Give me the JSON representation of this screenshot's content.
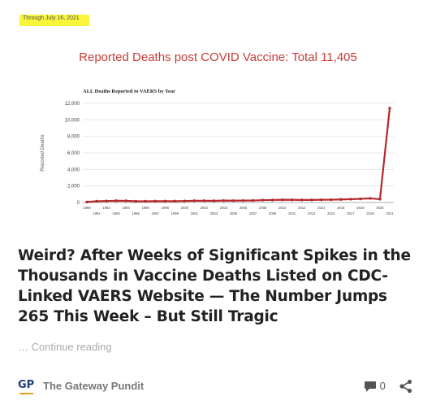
{
  "highlight_note": "Through July 16, 2021",
  "chart_heading": "Reported Deaths post COVID Vaccine: Total 11,405",
  "chart_data": {
    "type": "line",
    "title": "ALL Deaths Reported to VAERS by Year",
    "ylabel": "Reported Deaths",
    "xlabel": "",
    "x": [
      "1990",
      "1991",
      "1992",
      "1993",
      "1994",
      "1995",
      "1996",
      "1997",
      "1998",
      "1999",
      "2000",
      "2001",
      "2002",
      "2003",
      "2004",
      "2005",
      "2006",
      "2007",
      "2008",
      "2009",
      "2010",
      "2011",
      "2012",
      "2013",
      "2014",
      "2015",
      "2016",
      "2017",
      "2018",
      "2019",
      "2020",
      "2021"
    ],
    "values": [
      60,
      150,
      180,
      210,
      200,
      150,
      150,
      160,
      160,
      160,
      180,
      210,
      210,
      200,
      230,
      220,
      230,
      240,
      290,
      300,
      330,
      320,
      310,
      310,
      330,
      340,
      370,
      400,
      440,
      500,
      400,
      11405
    ],
    "yticks": [
      "0",
      "2,000",
      "4,000",
      "6,000",
      "8,000",
      "10,000",
      "12,000"
    ],
    "ylim": [
      0,
      12000
    ],
    "line_color": "#b5282b",
    "grid": true
  },
  "article": {
    "title": "Weird? After Weeks of Significant Spikes in the Thousands in Vaccine Deaths Listed on CDC-Linked VAERS Website — The Number Jumps 265 This Week – But Still Tragic",
    "continue_prefix": "… ",
    "continue_label": "Continue reading"
  },
  "footer": {
    "logo_text": "GP",
    "site_name": "The Gateway Pundit",
    "comment_count": "0",
    "comment_icon": "speech-bubble-icon",
    "share_icon": "share-icon"
  }
}
